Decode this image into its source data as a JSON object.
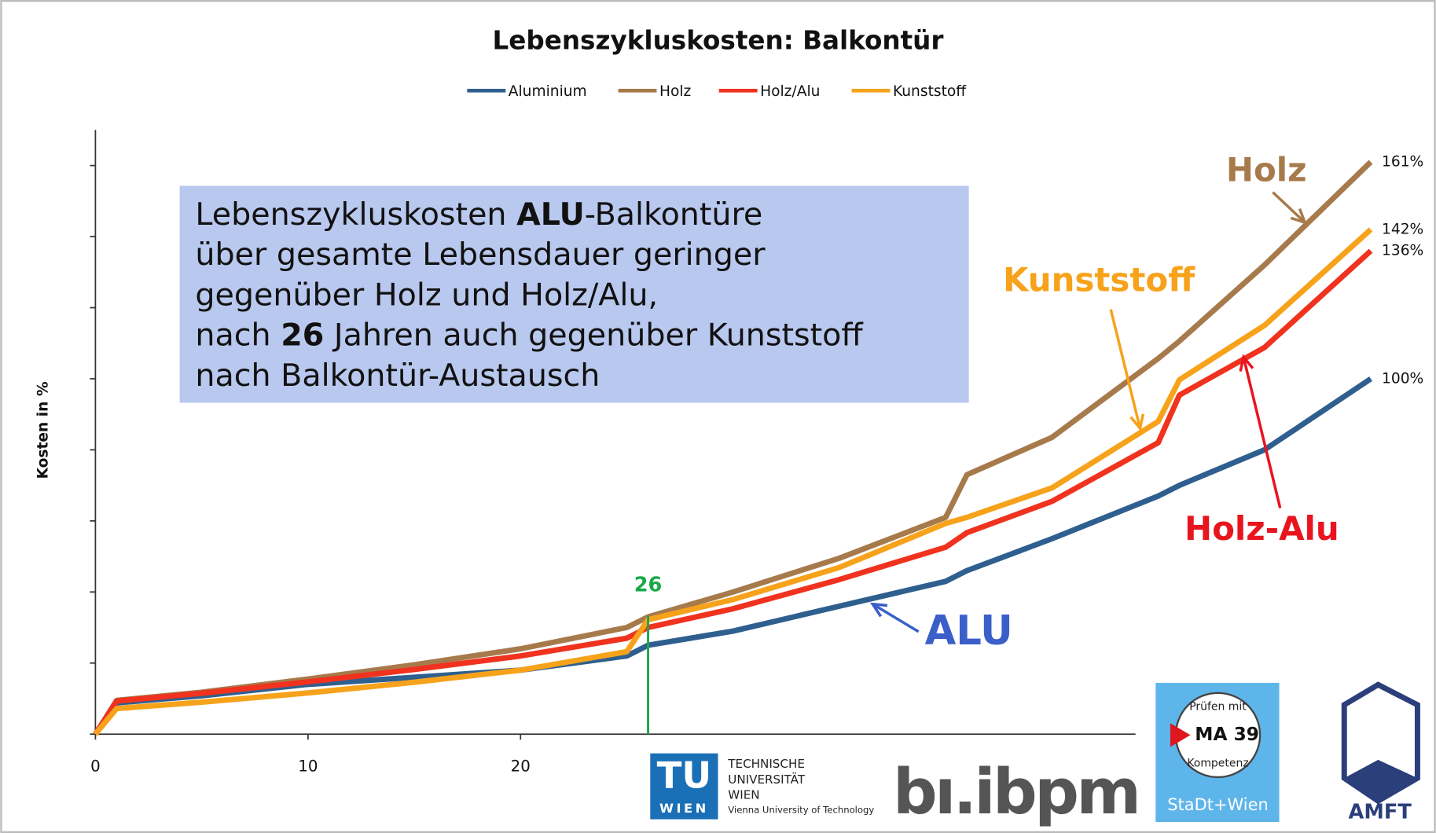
{
  "chart_data": {
    "type": "line",
    "title": "Lebenszykluskosten: Balkontür",
    "y_label": "Kosten in %",
    "x": [
      0,
      1,
      5,
      10,
      15,
      20,
      25,
      26,
      30,
      35,
      40,
      41,
      45,
      50,
      51,
      55,
      60
    ],
    "xlim": [
      0,
      60
    ],
    "xticks": [
      0,
      10,
      20
    ],
    "ylim": [
      0,
      170
    ],
    "yticks": [
      0,
      20,
      40,
      60,
      80,
      100,
      120,
      140,
      160
    ],
    "series": [
      {
        "name": "Aluminium",
        "color": "#2e5f8f",
        "values": [
          0,
          8.8,
          10.8,
          14,
          16,
          18,
          22,
          25,
          29,
          36,
          43,
          46,
          55,
          67,
          70,
          80,
          100
        ],
        "end_label": "100%"
      },
      {
        "name": "Holz",
        "color": "#a77a4c",
        "values": [
          0,
          9.5,
          11.8,
          15.5,
          19.5,
          24,
          30,
          33,
          40,
          49.5,
          61,
          73,
          83.5,
          105.7,
          110.6,
          132,
          161
        ],
        "end_label": "161%"
      },
      {
        "name": "Holz/Alu",
        "color": "#f0321e",
        "values": [
          0,
          9.3,
          11.5,
          14.7,
          18.2,
          22,
          27,
          30,
          35.3,
          43.5,
          52.6,
          56.7,
          65.5,
          82,
          95.4,
          108.8,
          136
        ],
        "end_label": "136%"
      },
      {
        "name": "Kunststoff",
        "color": "#f7a21b",
        "values": [
          0,
          7.2,
          9,
          11.6,
          14.6,
          18,
          23.2,
          32.2,
          37.9,
          46.9,
          59.3,
          61,
          69.3,
          88,
          99.7,
          115,
          142
        ],
        "end_label": "142%"
      }
    ],
    "marker_x": 26,
    "box": [
      [
        {
          "t": "Lebenszykluskosten "
        },
        {
          "t": "ALU",
          "b": true
        },
        {
          "t": "-Balkontüre"
        }
      ],
      [
        {
          "t": "über gesamte Lebensdauer geringer"
        }
      ],
      [
        {
          "t": "gegenüber Holz und Holz/Alu,"
        }
      ],
      [
        {
          "t": "nach "
        },
        {
          "t": "26",
          "b": true
        },
        {
          "t": " Jahren auch gegenüber Kunststoff"
        }
      ],
      [
        {
          "t": "nach Balkontür-Austausch"
        }
      ]
    ],
    "callouts": [
      {
        "text": "Holz",
        "color": "#a77a4c"
      },
      {
        "text": "Kunststoff",
        "color": "#f7a21b"
      },
      {
        "text": "Holz-Alu",
        "color": "#e8141e"
      },
      {
        "text": "ALU",
        "color": "#3a5fc8"
      }
    ]
  },
  "logos": {
    "tu": "TU",
    "tu_wien": "WIEN",
    "tu_lines": [
      "TECHNISCHE",
      "UNIVERSITÄT",
      "WIEN",
      "Vienna University of Technology"
    ],
    "bi": "bı.ibpm",
    "ma_top": "Prüfen mit",
    "ma": "MA 39",
    "ma_bottom": "Kompetenz",
    "stadt": "StaDt+Wien",
    "amft": "AMFT"
  }
}
